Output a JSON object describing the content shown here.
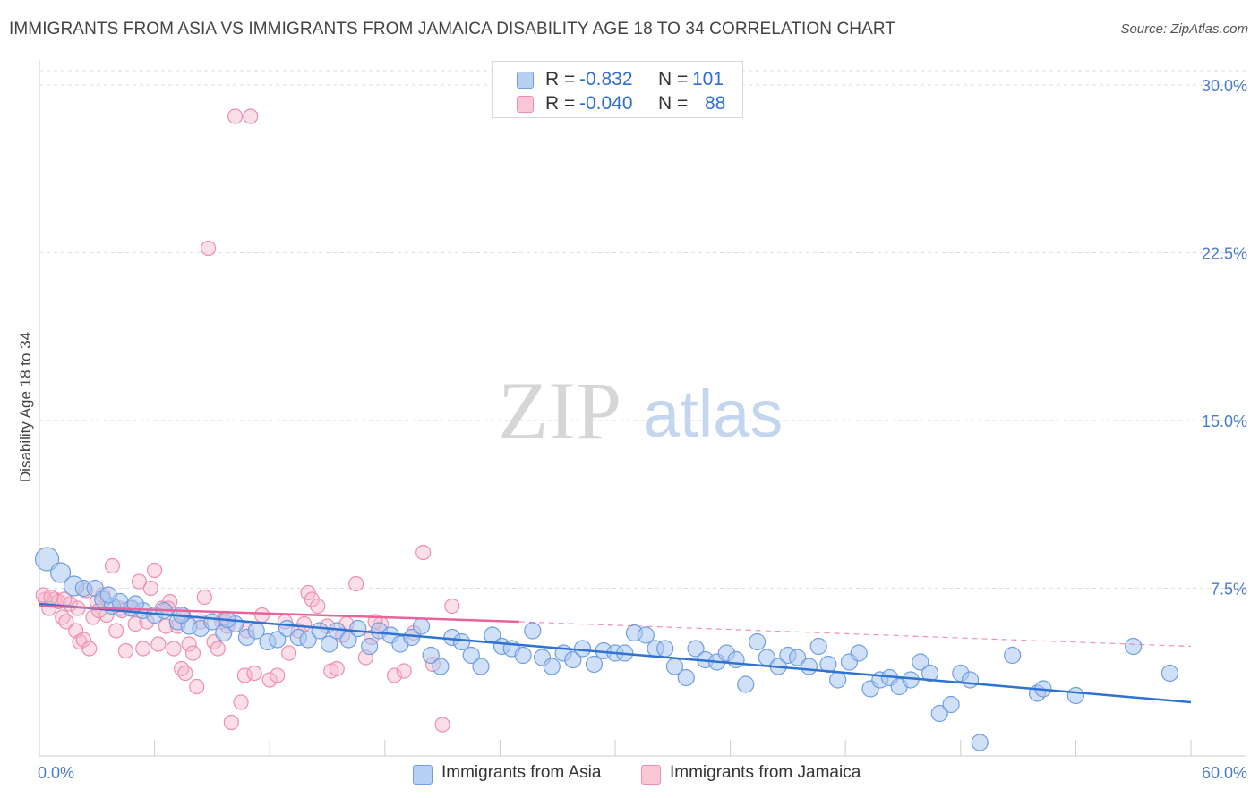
{
  "title": "IMMIGRANTS FROM ASIA VS IMMIGRANTS FROM JAMAICA DISABILITY AGE 18 TO 34 CORRELATION CHART",
  "source": "Source: ZipAtlas.com",
  "watermark": {
    "zip": "ZIP",
    "atlas": "atlas"
  },
  "colors": {
    "asia_fill": "#a9c6f0",
    "asia_stroke": "#6f9ee0",
    "asia_line": "#2e72d2",
    "jamaica_fill": "#f7b7cb",
    "jamaica_stroke": "#ee8fae",
    "jamaica_line": "#e8639a",
    "grid": "#dddddd",
    "tick_text": "#4a7cc9"
  },
  "legend": {
    "rows": [
      {
        "r_label": "R =",
        "r_value": "-0.832",
        "n_label": "N =",
        "n_value": "101"
      },
      {
        "r_label": "R =",
        "r_value": "-0.040",
        "n_label": "N =",
        "n_value": "88"
      }
    ]
  },
  "bottom_legend": {
    "asia": "Immigrants from Asia",
    "jamaica": "Immigrants from Jamaica"
  },
  "chart_data": {
    "type": "scatter",
    "title": "IMMIGRANTS FROM ASIA VS IMMIGRANTS FROM JAMAICA DISABILITY AGE 18 TO 34 CORRELATION CHART",
    "xlabel": "",
    "ylabel": "Disability Age 18 to 34",
    "xlim": [
      0,
      60
    ],
    "ylim": [
      0,
      31
    ],
    "x_tick_labels": [
      "0.0%",
      "60.0%"
    ],
    "y_ticks": [
      7.5,
      15.0,
      22.5,
      30.0
    ],
    "y_tick_labels": [
      "7.5%",
      "15.0%",
      "22.5%",
      "30.0%"
    ],
    "grid": true,
    "legend_position": "top-center",
    "series": [
      {
        "name": "Immigrants from Asia",
        "trend": {
          "x": [
            0,
            60
          ],
          "y": [
            6.8,
            2.4
          ]
        },
        "points": [
          [
            0.4,
            8.8
          ],
          [
            1.1,
            8.2
          ],
          [
            1.8,
            7.6
          ],
          [
            2.3,
            7.5
          ],
          [
            2.9,
            7.5
          ],
          [
            3.3,
            7.0
          ],
          [
            3.8,
            6.7
          ],
          [
            4.2,
            6.9
          ],
          [
            4.8,
            6.6
          ],
          [
            5.4,
            6.5
          ],
          [
            6.0,
            6.3
          ],
          [
            6.5,
            6.5
          ],
          [
            7.2,
            6.0
          ],
          [
            7.8,
            5.8
          ],
          [
            8.4,
            5.7
          ],
          [
            9.0,
            6.0
          ],
          [
            9.6,
            5.5
          ],
          [
            10.2,
            5.9
          ],
          [
            10.8,
            5.3
          ],
          [
            11.3,
            5.6
          ],
          [
            11.9,
            5.1
          ],
          [
            12.4,
            5.2
          ],
          [
            12.9,
            5.7
          ],
          [
            13.5,
            5.3
          ],
          [
            14.0,
            5.2
          ],
          [
            14.6,
            5.6
          ],
          [
            15.1,
            5.0
          ],
          [
            15.5,
            5.6
          ],
          [
            16.1,
            5.2
          ],
          [
            16.6,
            5.7
          ],
          [
            17.2,
            4.9
          ],
          [
            17.7,
            5.6
          ],
          [
            18.3,
            5.4
          ],
          [
            18.8,
            5.0
          ],
          [
            19.4,
            5.3
          ],
          [
            19.9,
            5.8
          ],
          [
            20.4,
            4.5
          ],
          [
            20.9,
            4.0
          ],
          [
            21.5,
            5.3
          ],
          [
            22.0,
            5.1
          ],
          [
            22.5,
            4.5
          ],
          [
            23.0,
            4.0
          ],
          [
            23.6,
            5.4
          ],
          [
            24.1,
            4.9
          ],
          [
            24.6,
            4.8
          ],
          [
            25.2,
            4.5
          ],
          [
            25.7,
            5.6
          ],
          [
            26.2,
            4.4
          ],
          [
            26.7,
            4.0
          ],
          [
            27.3,
            4.6
          ],
          [
            27.8,
            4.3
          ],
          [
            28.3,
            4.8
          ],
          [
            28.9,
            4.1
          ],
          [
            29.4,
            4.7
          ],
          [
            30.0,
            4.6
          ],
          [
            30.5,
            4.6
          ],
          [
            31.0,
            5.5
          ],
          [
            31.6,
            5.4
          ],
          [
            32.1,
            4.8
          ],
          [
            32.6,
            4.8
          ],
          [
            33.1,
            4.0
          ],
          [
            33.7,
            3.5
          ],
          [
            34.2,
            4.8
          ],
          [
            34.7,
            4.3
          ],
          [
            35.3,
            4.2
          ],
          [
            35.8,
            4.6
          ],
          [
            36.3,
            4.3
          ],
          [
            36.8,
            3.2
          ],
          [
            37.4,
            5.1
          ],
          [
            37.9,
            4.4
          ],
          [
            38.5,
            4.0
          ],
          [
            39.0,
            4.5
          ],
          [
            39.5,
            4.4
          ],
          [
            40.1,
            4.0
          ],
          [
            40.6,
            4.9
          ],
          [
            41.1,
            4.1
          ],
          [
            41.6,
            3.4
          ],
          [
            42.2,
            4.2
          ],
          [
            42.7,
            4.6
          ],
          [
            43.3,
            3.0
          ],
          [
            43.8,
            3.4
          ],
          [
            44.3,
            3.5
          ],
          [
            44.8,
            3.1
          ],
          [
            45.4,
            3.4
          ],
          [
            45.9,
            4.2
          ],
          [
            46.4,
            3.7
          ],
          [
            46.9,
            1.9
          ],
          [
            47.5,
            2.3
          ],
          [
            48.0,
            3.7
          ],
          [
            48.5,
            3.4
          ],
          [
            49.0,
            0.6
          ],
          [
            50.7,
            4.5
          ],
          [
            52.0,
            2.8
          ],
          [
            52.3,
            3.0
          ],
          [
            54.0,
            2.7
          ],
          [
            57.0,
            4.9
          ],
          [
            58.9,
            3.7
          ],
          [
            3.6,
            7.2
          ],
          [
            5.0,
            6.8
          ],
          [
            7.4,
            6.3
          ],
          [
            9.8,
            6.1
          ]
        ]
      },
      {
        "name": "Immigrants from Jamaica",
        "trend": {
          "x": [
            0,
            25
          ],
          "y": [
            6.7,
            6.0
          ]
        },
        "trend_extension": {
          "x": [
            25,
            60
          ],
          "y": [
            6.0,
            4.9
          ]
        },
        "points": [
          [
            0.3,
            7.0
          ],
          [
            0.5,
            6.6
          ],
          [
            0.8,
            7.0
          ],
          [
            1.0,
            6.9
          ],
          [
            1.2,
            6.2
          ],
          [
            1.4,
            6.0
          ],
          [
            1.6,
            6.8
          ],
          [
            1.9,
            5.6
          ],
          [
            2.1,
            5.1
          ],
          [
            2.3,
            5.2
          ],
          [
            2.6,
            4.8
          ],
          [
            2.8,
            6.2
          ],
          [
            3.0,
            6.9
          ],
          [
            3.3,
            7.2
          ],
          [
            3.5,
            6.3
          ],
          [
            3.8,
            8.5
          ],
          [
            4.0,
            5.6
          ],
          [
            4.2,
            6.6
          ],
          [
            4.5,
            4.7
          ],
          [
            4.8,
            6.6
          ],
          [
            5.0,
            5.9
          ],
          [
            5.2,
            7.8
          ],
          [
            5.4,
            4.8
          ],
          [
            5.6,
            6.0
          ],
          [
            5.8,
            7.5
          ],
          [
            6.0,
            8.3
          ],
          [
            6.2,
            5.0
          ],
          [
            6.4,
            6.6
          ],
          [
            6.6,
            5.8
          ],
          [
            6.8,
            6.9
          ],
          [
            7.0,
            4.8
          ],
          [
            7.2,
            5.8
          ],
          [
            7.4,
            3.9
          ],
          [
            7.6,
            3.7
          ],
          [
            7.8,
            5.0
          ],
          [
            8.0,
            4.6
          ],
          [
            8.2,
            3.1
          ],
          [
            8.4,
            6.0
          ],
          [
            8.6,
            7.1
          ],
          [
            8.8,
            22.7
          ],
          [
            9.1,
            5.1
          ],
          [
            9.3,
            4.8
          ],
          [
            9.6,
            6.1
          ],
          [
            9.8,
            5.8
          ],
          [
            10.0,
            1.5
          ],
          [
            10.2,
            28.6
          ],
          [
            10.5,
            2.4
          ],
          [
            10.7,
            3.6
          ],
          [
            11.0,
            28.6
          ],
          [
            11.2,
            3.7
          ],
          [
            12.0,
            3.4
          ],
          [
            12.4,
            3.6
          ],
          [
            13.0,
            4.6
          ],
          [
            13.5,
            5.6
          ],
          [
            14.0,
            7.3
          ],
          [
            14.2,
            7.0
          ],
          [
            14.5,
            6.7
          ],
          [
            15.0,
            5.8
          ],
          [
            15.2,
            3.8
          ],
          [
            15.5,
            3.9
          ],
          [
            16.0,
            5.9
          ],
          [
            16.5,
            7.7
          ],
          [
            17.0,
            4.4
          ],
          [
            17.3,
            5.3
          ],
          [
            17.8,
            5.9
          ],
          [
            18.5,
            3.6
          ],
          [
            19.0,
            3.8
          ],
          [
            19.5,
            5.5
          ],
          [
            20.0,
            9.1
          ],
          [
            20.5,
            4.1
          ],
          [
            21.0,
            1.4
          ],
          [
            21.5,
            6.7
          ],
          [
            0.2,
            7.2
          ],
          [
            0.6,
            7.1
          ],
          [
            1.3,
            7.0
          ],
          [
            2.0,
            6.6
          ],
          [
            2.4,
            7.4
          ],
          [
            3.1,
            6.5
          ],
          [
            4.3,
            6.5
          ],
          [
            6.7,
            6.6
          ],
          [
            7.5,
            6.3
          ],
          [
            9.5,
            6.0
          ],
          [
            10.8,
            5.6
          ],
          [
            11.6,
            6.3
          ],
          [
            12.8,
            6.0
          ],
          [
            13.8,
            5.9
          ],
          [
            15.8,
            5.4
          ],
          [
            17.5,
            6.0
          ]
        ]
      }
    ]
  }
}
